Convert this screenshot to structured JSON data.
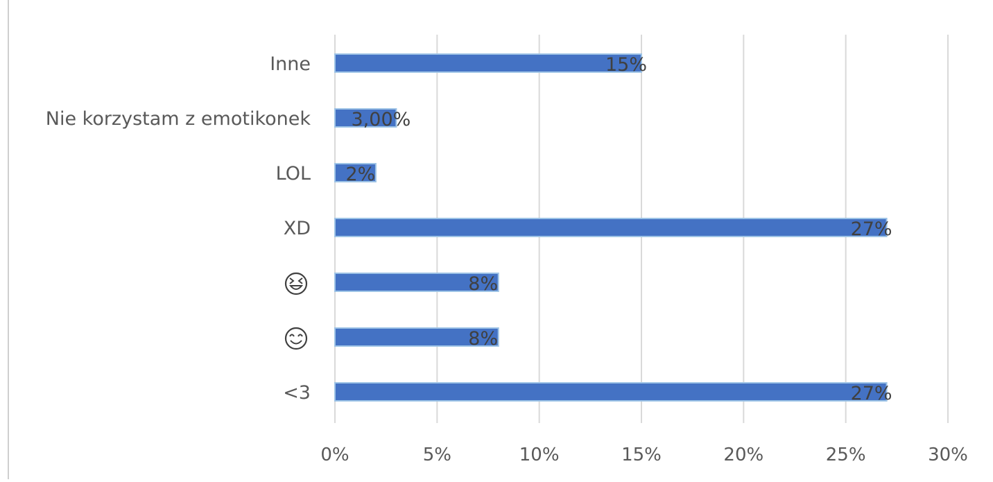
{
  "chart_data": {
    "type": "bar",
    "orientation": "horizontal",
    "categories": [
      "Inne",
      "Nie korzystam z emotikonek",
      "LOL",
      "XD",
      "😆",
      "😊",
      "<3"
    ],
    "category_icons": [
      null,
      null,
      null,
      null,
      "laughing-face-icon",
      "smiling-face-icon",
      null
    ],
    "values": [
      15,
      3,
      2,
      27,
      8,
      8,
      27
    ],
    "data_labels": [
      "15%",
      "3,00%",
      "2%",
      "27%",
      "8%",
      "8%",
      "27%"
    ],
    "xlim": [
      0,
      30
    ],
    "x_ticks": [
      0,
      5,
      10,
      15,
      20,
      25,
      30
    ],
    "x_tick_labels": [
      "0%",
      "5%",
      "10%",
      "15%",
      "20%",
      "25%",
      "30%"
    ],
    "title": "",
    "xlabel": "",
    "ylabel": "",
    "grid": true,
    "legend": "none",
    "colors": {
      "bar": "#4472C4",
      "bar_edge": "#9DC3E6",
      "grid": "#D9D9D9",
      "axis_text": "#595959",
      "data_label": "#404040",
      "frame": "#BFBFBF"
    }
  }
}
